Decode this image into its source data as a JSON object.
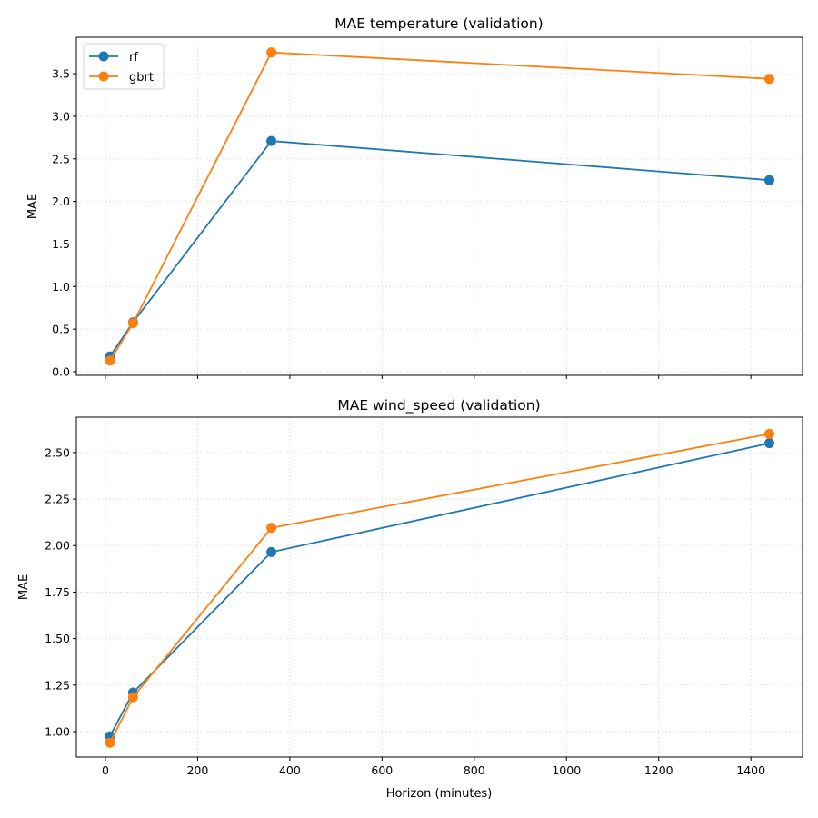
{
  "chart_data": [
    {
      "type": "line",
      "title": "MAE temperature (validation)",
      "xlabel": "",
      "ylabel": "MAE",
      "x": [
        10,
        60,
        360,
        1440
      ],
      "xlim": [
        -63,
        1512
      ],
      "ylim": [
        -0.043,
        3.928
      ],
      "xticks": [
        0,
        200,
        400,
        600,
        800,
        1000,
        1200,
        1400
      ],
      "xtick_labels_visible": false,
      "yticks": [
        0.0,
        0.5,
        1.0,
        1.5,
        2.0,
        2.5,
        3.0,
        3.5
      ],
      "ytick_labels": [
        "0.0",
        "0.5",
        "1.0",
        "1.5",
        "2.0",
        "2.5",
        "3.0",
        "3.5"
      ],
      "grid": true,
      "legend": "upper-left",
      "series": [
        {
          "name": "rf",
          "color": "#1f77b4",
          "values": [
            0.18,
            0.58,
            2.71,
            2.25
          ]
        },
        {
          "name": "gbrt",
          "color": "#ff7f0e",
          "values": [
            0.13,
            0.57,
            3.75,
            3.44
          ]
        }
      ]
    },
    {
      "type": "line",
      "title": "MAE wind_speed (validation)",
      "xlabel": "Horizon (minutes)",
      "ylabel": "MAE",
      "x": [
        10,
        60,
        360,
        1440
      ],
      "xlim": [
        -63,
        1512
      ],
      "ylim": [
        0.863,
        2.69
      ],
      "xticks": [
        0,
        200,
        400,
        600,
        800,
        1000,
        1200,
        1400
      ],
      "xtick_labels": [
        "0",
        "200",
        "400",
        "600",
        "800",
        "1000",
        "1200",
        "1400"
      ],
      "xtick_labels_visible": true,
      "yticks": [
        1.0,
        1.25,
        1.5,
        1.75,
        2.0,
        2.25,
        2.5
      ],
      "ytick_labels": [
        "1.00",
        "1.25",
        "1.50",
        "1.75",
        "2.00",
        "2.25",
        "2.50"
      ],
      "grid": true,
      "legend": "none",
      "series": [
        {
          "name": "rf",
          "color": "#1f77b4",
          "values": [
            0.975,
            1.21,
            1.965,
            2.55
          ]
        },
        {
          "name": "gbrt",
          "color": "#ff7f0e",
          "values": [
            0.94,
            1.185,
            2.095,
            2.6
          ]
        }
      ]
    }
  ]
}
